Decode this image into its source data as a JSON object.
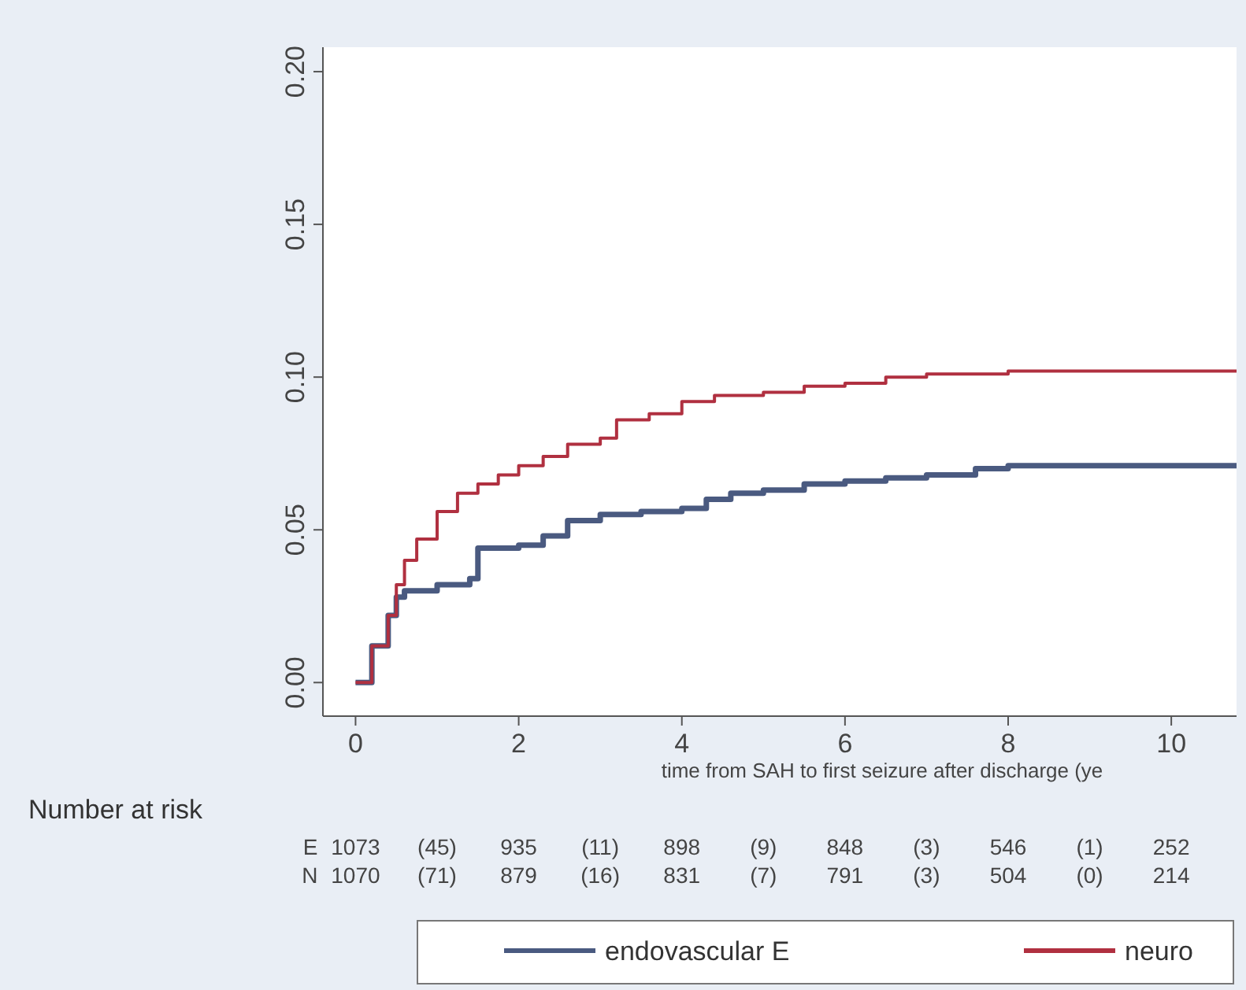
{
  "chart_data": {
    "type": "step",
    "xlabel": "time from SAH to first seizure after discharge (ye",
    "xlim": [
      -0.4,
      10.8
    ],
    "xticks": [
      0,
      2,
      4,
      6,
      8,
      10
    ],
    "ylim": [
      -0.011,
      0.208
    ],
    "yticks": [
      {
        "value": 0,
        "label": "0.00"
      },
      {
        "value": 0.05,
        "label": "0.05"
      },
      {
        "value": 0.1,
        "label": "0.10"
      },
      {
        "value": 0.15,
        "label": "0.15"
      },
      {
        "value": 0.2,
        "label": "0.20"
      }
    ],
    "grid": false,
    "legend": "bottom",
    "marker": "none",
    "line_style": "solid",
    "series": [
      {
        "name": "endovascular E",
        "color": "#4a5a80",
        "x": [
          0,
          0.2,
          0.4,
          0.5,
          0.6,
          1.0,
          1.4,
          1.5,
          2.0,
          2.3,
          2.6,
          3.0,
          3.5,
          4.0,
          4.3,
          4.6,
          5.0,
          5.5,
          6.0,
          6.5,
          7.0,
          7.6,
          8.0,
          10.8
        ],
        "values": [
          0,
          0.012,
          0.022,
          0.028,
          0.03,
          0.032,
          0.034,
          0.044,
          0.045,
          0.048,
          0.053,
          0.055,
          0.056,
          0.057,
          0.06,
          0.062,
          0.063,
          0.065,
          0.066,
          0.067,
          0.068,
          0.07,
          0.071,
          0.071
        ]
      },
      {
        "name": "neuro",
        "color": "#b03040",
        "x": [
          0,
          0.2,
          0.4,
          0.5,
          0.6,
          0.75,
          1.0,
          1.25,
          1.5,
          1.75,
          2.0,
          2.3,
          2.6,
          3.0,
          3.2,
          3.6,
          4.0,
          4.4,
          5.0,
          5.5,
          6.0,
          6.5,
          7.0,
          8.0,
          10.8
        ],
        "values": [
          0,
          0.012,
          0.022,
          0.032,
          0.04,
          0.047,
          0.056,
          0.062,
          0.065,
          0.068,
          0.071,
          0.074,
          0.078,
          0.08,
          0.086,
          0.088,
          0.092,
          0.094,
          0.095,
          0.097,
          0.098,
          0.1,
          0.101,
          0.102,
          0.102
        ]
      }
    ],
    "annotations": [
      "Number at risk",
      "E 1073 (45) 935 (11) 898 (9) 848 (3) 546 (1) 252",
      "N 1070 (71) 879 (16) 831 (7) 791 (3) 504 (0) 214"
    ]
  }
}
